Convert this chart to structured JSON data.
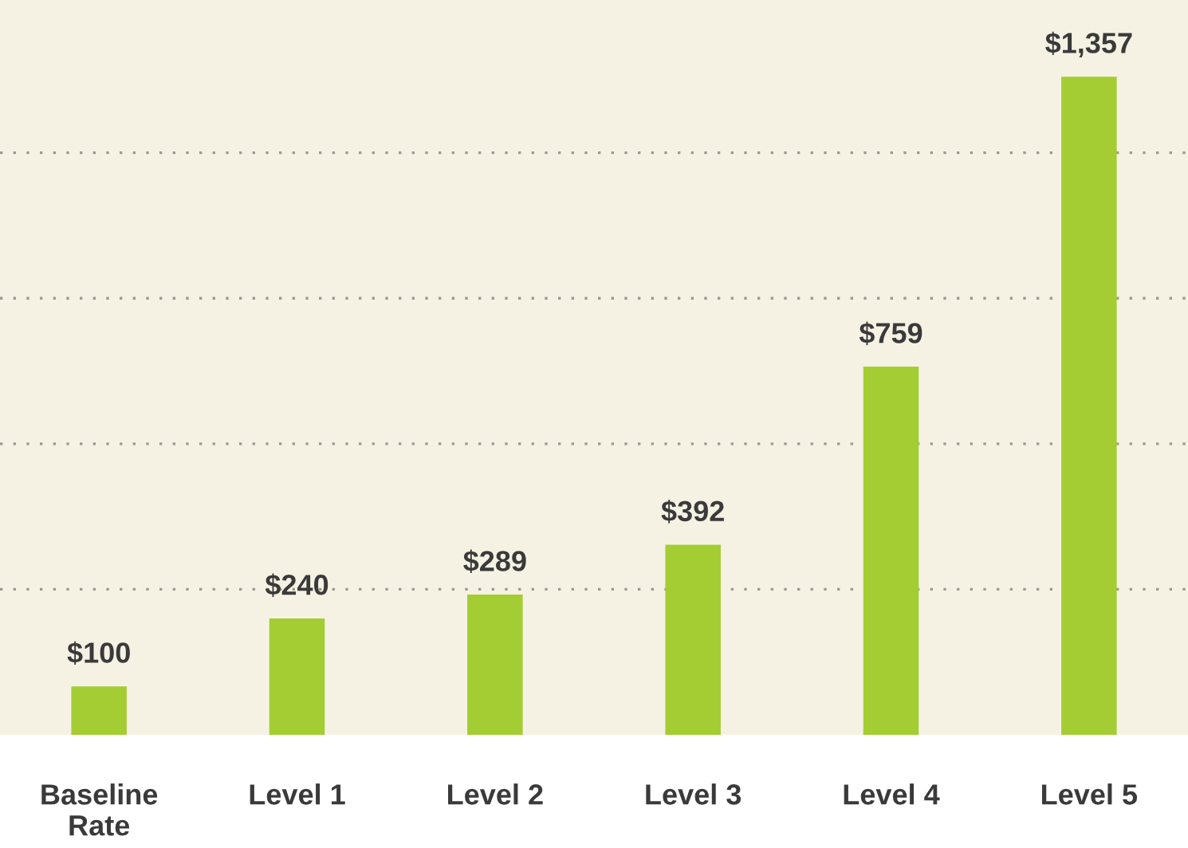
{
  "chart_data": {
    "type": "bar",
    "categories": [
      "Baseline\nRate",
      "Level 1",
      "Level 2",
      "Level 3",
      "Level 4",
      "Level 5"
    ],
    "values": [
      100,
      240,
      289,
      392,
      759,
      1357
    ],
    "value_labels": [
      "$100",
      "$240",
      "$289",
      "$392",
      "$759",
      "$1,357"
    ],
    "color": "#a3cd32",
    "ylim": [
      0,
      1515
    ],
    "yticks": [
      {
        "value": 300,
        "label": null
      },
      {
        "value": 600,
        "label": null
      },
      {
        "value": 900,
        "label": null
      },
      {
        "value": 1200,
        "label": null
      }
    ],
    "grid": "y",
    "tick_labels": "x"
  }
}
